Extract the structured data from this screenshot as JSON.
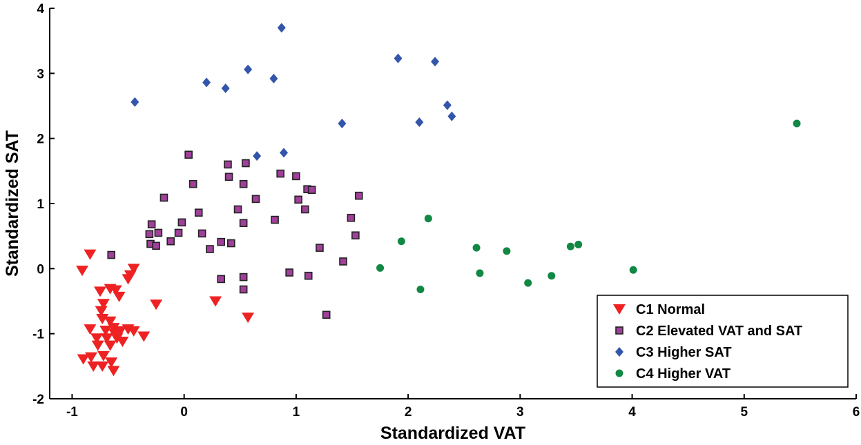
{
  "chart_data": {
    "type": "scatter",
    "xlabel": "Standardized VAT",
    "ylabel": "Standardized SAT",
    "xlim": [
      -1.2,
      6
    ],
    "ylim": [
      -2,
      4
    ],
    "xticks": [
      -1,
      0,
      1,
      2,
      3,
      4,
      5,
      6
    ],
    "yticks": [
      -2,
      -1,
      0,
      1,
      2,
      3,
      4
    ],
    "grid": false,
    "legend_position": "bottom-right",
    "series": [
      {
        "name": "C1 Normal",
        "marker": "triangle-down",
        "color": "#ee2222",
        "points": [
          [
            -0.84,
            0.22
          ],
          [
            -0.91,
            -0.03
          ],
          [
            -0.45,
            0.0
          ],
          [
            -0.48,
            -0.1
          ],
          [
            -0.5,
            -0.16
          ],
          [
            -0.25,
            -0.55
          ],
          [
            0.28,
            -0.5
          ],
          [
            0.57,
            -0.75
          ],
          [
            -0.36,
            -1.04
          ],
          [
            -0.75,
            -0.35
          ],
          [
            -0.66,
            -0.31
          ],
          [
            -0.61,
            -0.33
          ],
          [
            -0.58,
            -0.43
          ],
          [
            -0.72,
            -0.54
          ],
          [
            -0.74,
            -0.65
          ],
          [
            -0.73,
            -0.77
          ],
          [
            -0.84,
            -0.93
          ],
          [
            -0.66,
            -0.81
          ],
          [
            -0.63,
            -0.91
          ],
          [
            -0.57,
            -0.96
          ],
          [
            -0.5,
            -0.93
          ],
          [
            -0.45,
            -0.96
          ],
          [
            -0.78,
            -1.07
          ],
          [
            -0.69,
            -1.07
          ],
          [
            -0.6,
            -1.07
          ],
          [
            -0.55,
            -1.12
          ],
          [
            -0.9,
            -1.39
          ],
          [
            -0.83,
            -1.36
          ],
          [
            -0.72,
            -1.34
          ],
          [
            -0.81,
            -1.5
          ],
          [
            -0.73,
            -1.5
          ],
          [
            -0.65,
            -1.44
          ],
          [
            -0.63,
            -1.57
          ],
          [
            -0.77,
            -1.18
          ],
          [
            -0.66,
            -1.18
          ],
          [
            -0.7,
            -0.95
          ],
          [
            -0.62,
            -1.0
          ]
        ]
      },
      {
        "name": "C2 Elevated VAT and SAT",
        "marker": "square",
        "color": "#a0409a",
        "points": [
          [
            0.04,
            1.75
          ],
          [
            0.08,
            1.3
          ],
          [
            -0.18,
            1.09
          ],
          [
            0.39,
            1.6
          ],
          [
            0.4,
            1.41
          ],
          [
            0.55,
            1.62
          ],
          [
            0.53,
            1.3
          ],
          [
            0.13,
            0.86
          ],
          [
            0.48,
            0.91
          ],
          [
            0.64,
            1.07
          ],
          [
            -0.02,
            0.71
          ],
          [
            0.16,
            0.54
          ],
          [
            -0.29,
            0.68
          ],
          [
            -0.31,
            0.53
          ],
          [
            -0.23,
            0.55
          ],
          [
            -0.05,
            0.55
          ],
          [
            -0.12,
            0.42
          ],
          [
            -0.3,
            0.38
          ],
          [
            -0.25,
            0.35
          ],
          [
            0.23,
            0.3
          ],
          [
            0.33,
            0.41
          ],
          [
            0.42,
            0.39
          ],
          [
            0.53,
            0.7
          ],
          [
            0.81,
            0.75
          ],
          [
            0.86,
            1.46
          ],
          [
            1.0,
            1.42
          ],
          [
            1.02,
            1.06
          ],
          [
            1.1,
            1.22
          ],
          [
            1.14,
            1.21
          ],
          [
            1.08,
            0.91
          ],
          [
            1.56,
            1.12
          ],
          [
            1.49,
            0.78
          ],
          [
            1.53,
            0.51
          ],
          [
            1.21,
            0.32
          ],
          [
            1.42,
            0.11
          ],
          [
            0.94,
            -0.06
          ],
          [
            0.33,
            -0.16
          ],
          [
            0.53,
            -0.13
          ],
          [
            0.53,
            -0.32
          ],
          [
            1.11,
            -0.11
          ],
          [
            1.27,
            -0.71
          ],
          [
            -0.65,
            0.21
          ]
        ]
      },
      {
        "name": "C3 Higher SAT",
        "marker": "diamond",
        "color": "#3355aa",
        "points": [
          [
            -0.44,
            2.56
          ],
          [
            0.2,
            2.86
          ],
          [
            0.37,
            2.77
          ],
          [
            0.57,
            3.06
          ],
          [
            0.8,
            2.92
          ],
          [
            0.87,
            3.7
          ],
          [
            0.65,
            1.73
          ],
          [
            0.89,
            1.78
          ],
          [
            1.41,
            2.23
          ],
          [
            1.91,
            3.23
          ],
          [
            2.24,
            3.18
          ],
          [
            2.1,
            2.25
          ],
          [
            2.35,
            2.51
          ],
          [
            2.39,
            2.34
          ]
        ]
      },
      {
        "name": "C4 Higher VAT",
        "marker": "circle",
        "color": "#118844",
        "points": [
          [
            1.75,
            0.01
          ],
          [
            1.94,
            0.42
          ],
          [
            2.18,
            0.77
          ],
          [
            2.11,
            -0.32
          ],
          [
            2.61,
            0.32
          ],
          [
            2.64,
            -0.07
          ],
          [
            2.88,
            0.27
          ],
          [
            3.07,
            -0.22
          ],
          [
            3.28,
            -0.11
          ],
          [
            3.45,
            0.34
          ],
          [
            3.52,
            0.37
          ],
          [
            4.01,
            -0.02
          ],
          [
            5.47,
            2.23
          ]
        ]
      }
    ]
  }
}
